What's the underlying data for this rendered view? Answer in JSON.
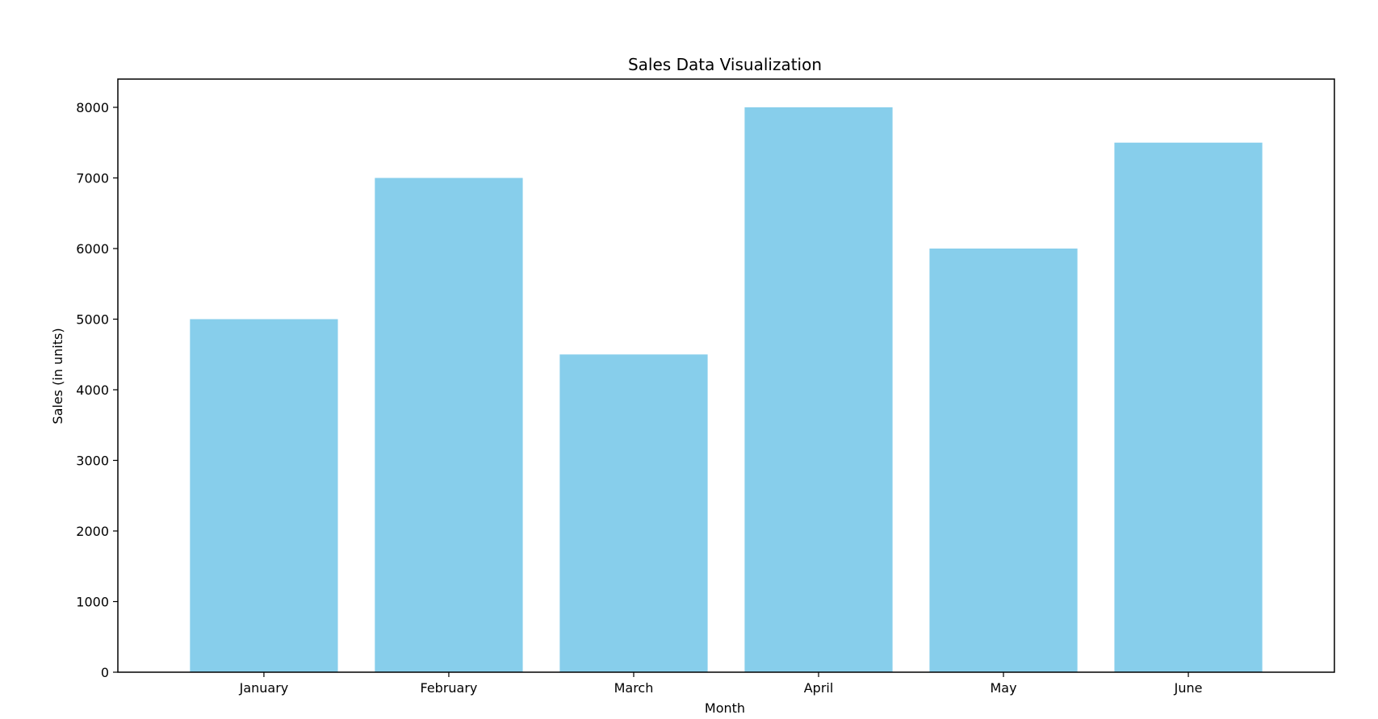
{
  "chart_data": {
    "type": "bar",
    "title": "Sales Data Visualization",
    "xlabel": "Month",
    "ylabel": "Sales (in units)",
    "categories": [
      "January",
      "February",
      "March",
      "April",
      "May",
      "June"
    ],
    "values": [
      5000,
      7000,
      4500,
      8000,
      6000,
      7500
    ],
    "ylim": [
      0,
      8400
    ],
    "yticks": [
      0,
      1000,
      2000,
      3000,
      4000,
      5000,
      6000,
      7000,
      8000
    ],
    "grid": false,
    "legend": "none",
    "colors": {
      "bar": "#87CEEB",
      "axis": "#000000",
      "background": "#ffffff"
    }
  }
}
